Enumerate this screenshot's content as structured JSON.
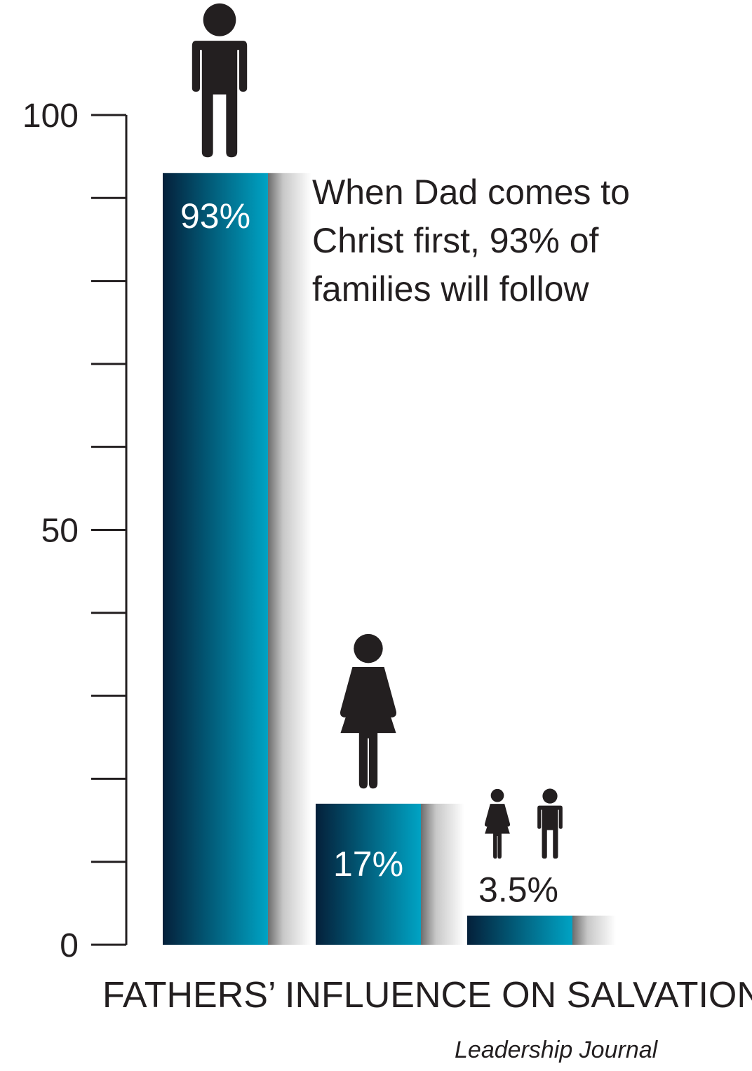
{
  "chart_data": {
    "type": "bar",
    "title": "FATHERS’ INFLUENCE ON SALVATION",
    "source": "Leadership Journal",
    "ylim": [
      0,
      100
    ],
    "y_major_ticks": [
      0,
      50,
      100
    ],
    "y_minor_step": 10,
    "grid": false,
    "values": [
      93,
      17,
      3.5
    ],
    "data_labels": [
      "93%",
      "17%",
      "3.5%"
    ],
    "icons": [
      "man-icon",
      "woman-icon",
      "children-icon"
    ],
    "annotation": [
      "When Dad comes to",
      "Christ first, 93% of",
      "families will follow"
    ]
  },
  "colors": {
    "bar_dark": "#04203a",
    "bar_light": "#00a3c4",
    "shadow": "#8a8a8a",
    "ink": "#231f20"
  }
}
